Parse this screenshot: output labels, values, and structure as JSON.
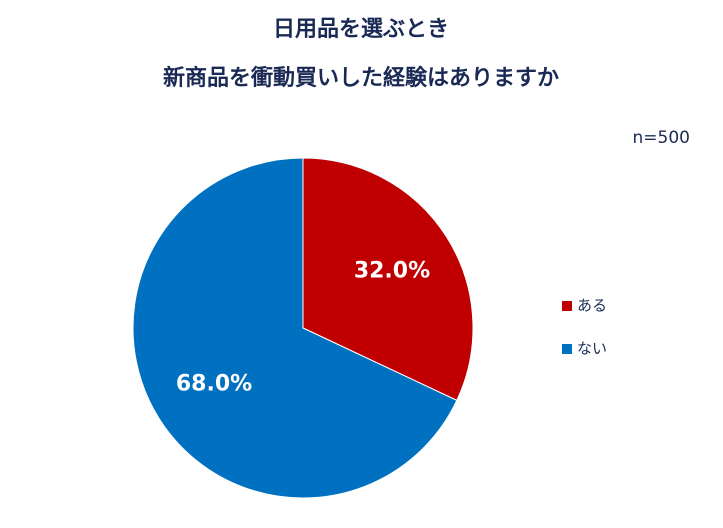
{
  "chart_data": {
    "type": "pie",
    "title": [
      "日用品を選ぶとき",
      "新商品を衝動買いした経験はありますか"
    ],
    "annotation": "n=500",
    "categories": [
      "ある",
      "ない"
    ],
    "values": [
      32.0,
      68.0
    ],
    "value_labels": [
      "32.0%",
      "68.0%"
    ],
    "colors": [
      "#c00000",
      "#0070c0"
    ],
    "legend": "right"
  }
}
